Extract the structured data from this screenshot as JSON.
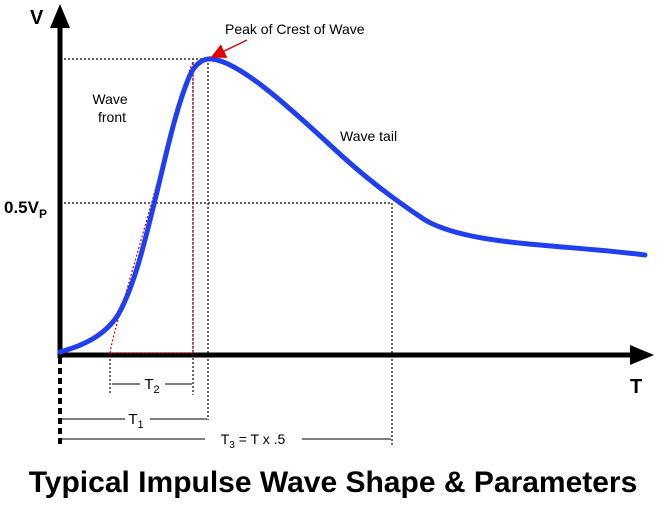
{
  "axes": {
    "y_label": "V",
    "x_label": "T",
    "level": {
      "base": "0.5V",
      "sub": "P"
    }
  },
  "annotations": {
    "peak": "Peak of Crest of Wave",
    "wave_front_line1": "Wave",
    "wave_front_line2": "front",
    "wave_tail": "Wave tail"
  },
  "timing": {
    "t2": {
      "base": "T",
      "sub": "2"
    },
    "t1": {
      "base": "T",
      "sub": "1"
    },
    "t3": {
      "base": "T",
      "sub": "3",
      "rest": " = T x .5"
    }
  },
  "title": "Typical Impulse Wave Shape &  Parameters",
  "colors": {
    "wave": "#1f3ff0",
    "construction": "#cc0000",
    "axis": "#000000"
  }
}
